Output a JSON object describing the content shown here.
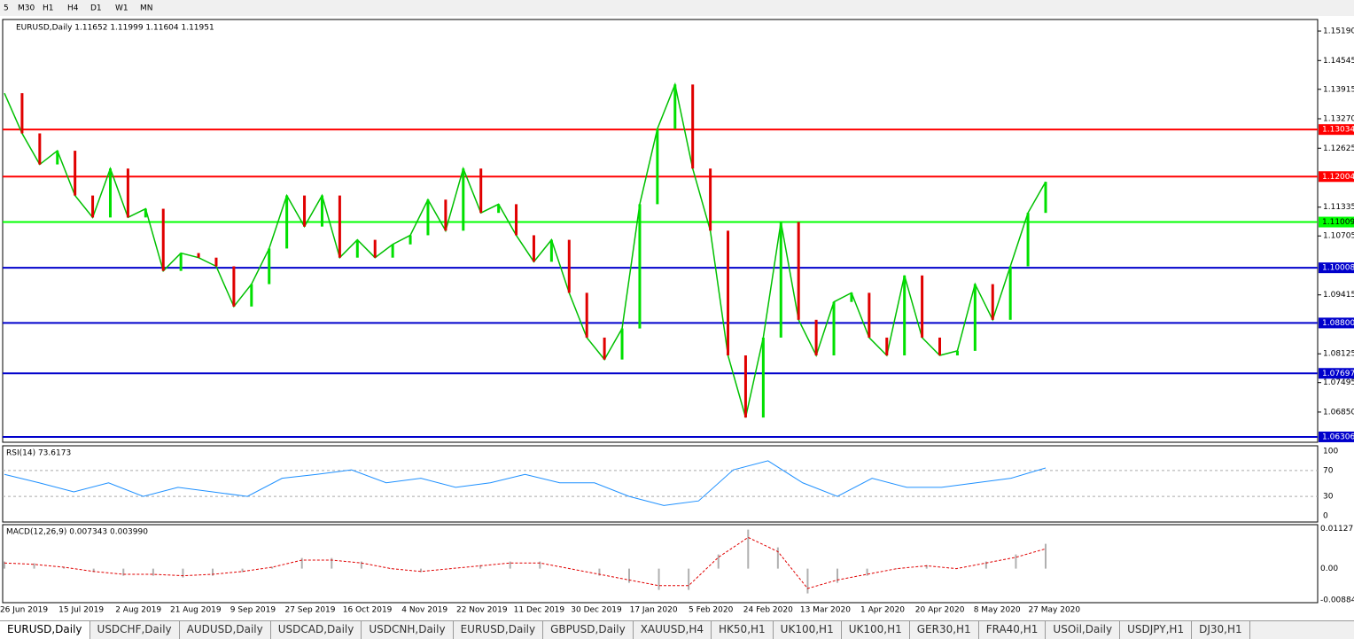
{
  "toolbar": {
    "timeframes": [
      "5",
      "M30",
      "H1",
      "H4",
      "D1",
      "W1",
      "MN"
    ]
  },
  "chart": {
    "header": "EURUSD,Daily  1.11652 1.11999 1.11604 1.11951",
    "ylim": [
      1.06189,
      1.15443
    ],
    "yticks": [
      {
        "value": 1.1519,
        "label": "1.15190"
      },
      1.14545,
      1.13915,
      {
        "value": 1.1327,
        "label": "1.13270"
      },
      1.12625,
      1.11335,
      1.10705,
      1.09415,
      1.08125,
      1.07495,
      {
        "value": 1.0685,
        "label": "1.06850"
      }
    ],
    "levels": [
      {
        "price": 1.13034,
        "color": "#ff0000"
      },
      {
        "price": 1.12004,
        "color": "#ff0000"
      },
      {
        "price": 1.11009,
        "color": "#00ff00"
      },
      {
        "price": 1.10008,
        "color": "#0000cc"
      },
      {
        "price": {
          "value": 1.088,
          "label": "1.08800"
        },
        "color": "#0000cc"
      },
      {
        "price": 1.07697,
        "color": "#0000cc"
      },
      {
        "price": 1.06306,
        "color": "#0000cc"
      }
    ],
    "closes": [
      1.1383,
      1.1295,
      1.1227,
      1.1257,
      1.1159,
      1.1111,
      1.1218,
      1.1111,
      1.113,
      1.0994,
      1.1033,
      1.1023,
      1.1004,
      1.0916,
      1.0965,
      1.1043,
      1.1159,
      1.1091,
      1.1159,
      1.1023,
      1.1062,
      1.1023,
      1.1052,
      1.1072,
      1.115,
      1.1082,
      1.1218,
      1.1121,
      1.114,
      1.1072,
      1.1014,
      1.1062,
      1.0946,
      1.0848,
      1.08,
      1.0868,
      1.114,
      1.1305,
      1.1402,
      1.1218,
      1.1082,
      1.0809,
      1.0673,
      1.0848,
      1.1101,
      1.0887,
      1.0809,
      1.0926,
      1.0946,
      1.0848,
      1.0809,
      1.0984,
      1.0848,
      1.0809,
      1.0819,
      1.0965,
      1.0887,
      1.1004,
      1.1121,
      1.1189
    ],
    "dates": [
      "26 Jun 2019",
      "15 Jul 2019",
      "2 Aug 2019",
      "21 Aug 2019",
      "9 Sep 2019",
      "27 Sep 2019",
      "16 Oct 2019",
      "4 Nov 2019",
      "22 Nov 2019",
      "11 Dec 2019",
      "30 Dec 2019",
      "17 Jan 2020",
      "5 Feb 2020",
      "24 Feb 2020",
      "13 Mar 2020",
      "1 Apr 2020",
      "20 Apr 2020",
      "8 May 2020",
      "27 May 2020"
    ]
  },
  "rsi": {
    "label": "RSI(14) 73.6173",
    "ylim": [
      0,
      100
    ],
    "yticks": [
      100,
      70,
      30,
      0
    ],
    "values": [
      64,
      51,
      37,
      51,
      30,
      44,
      37,
      30,
      58,
      64,
      71,
      51,
      58,
      44,
      51,
      64,
      51,
      51,
      30,
      16,
      23,
      71,
      85,
      51,
      30,
      58,
      44,
      44,
      51,
      58,
      74
    ]
  },
  "macd": {
    "label": "MACD(12,26,9) 0.007343 0.003990",
    "ylim": [
      -0.0096,
      0.0124
    ],
    "yticks": [
      {
        "value": 0.011277,
        "label": "0.011277"
      },
      {
        "value": 0,
        "label": "0.00"
      },
      {
        "value": -0.00884,
        "label": "-0.00884"
      }
    ],
    "values": [
      0.002,
      0.0015,
      0.0005,
      -0.001,
      -0.002,
      -0.002,
      -0.0025,
      -0.002,
      -0.001,
      0.0005,
      0.003,
      0.003,
      0.002,
      0,
      -0.001,
      0,
      0.001,
      0.002,
      0.002,
      0,
      -0.002,
      -0.004,
      -0.006,
      -0.006,
      0.004,
      0.011,
      0.006,
      -0.007,
      -0.004,
      -0.002,
      0,
      0.001,
      0,
      0.002,
      0.004,
      0.007
    ]
  },
  "tabs": [
    "EURUSD,Daily",
    "USDCHF,Daily",
    "AUDUSD,Daily",
    "USDCAD,Daily",
    "USDCNH,Daily",
    "EURUSD,Daily",
    "GBPUSD,Daily",
    "XAUUSD,H4",
    "HK50,H1",
    "UK100,H1",
    "UK100,H1",
    "GER30,H1",
    "FRA40,H1",
    "USOil,Daily",
    "USDJPY,H1",
    "DJ30,H1"
  ]
}
